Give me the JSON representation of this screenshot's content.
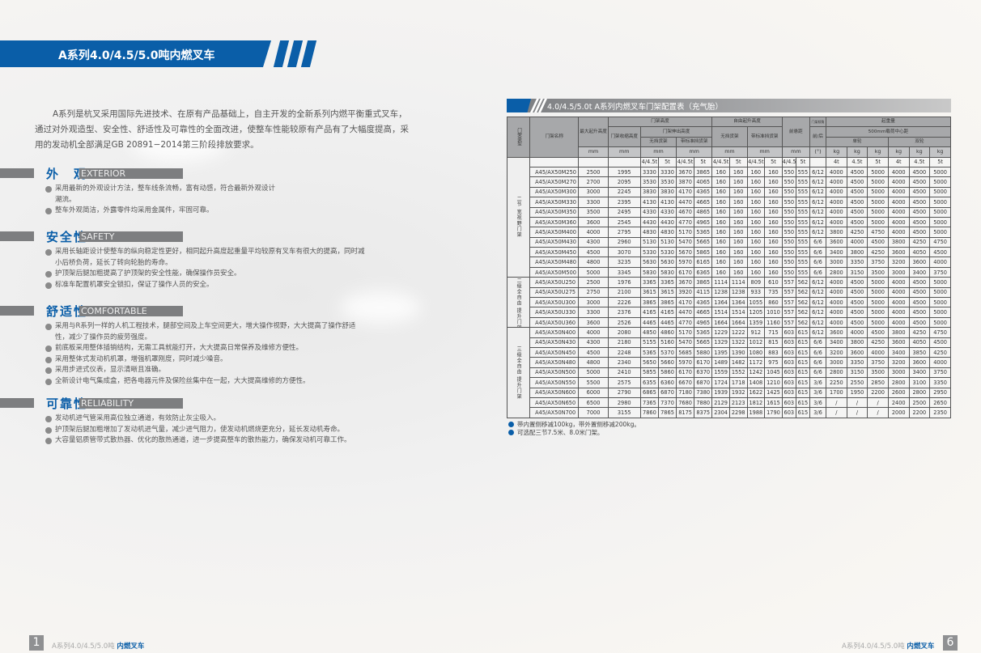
{
  "header": {
    "title": "A系列4.0/4.5/5.0吨内燃叉车"
  },
  "intro": "A系列是杭叉采用国际先进技术、在原有产品基础上，自主开发的全新系列内燃平衡重式叉车，通过对外观造型、安全性、舒适性及可靠性的全面改进，使整车性能较原有产品有了大幅度提高，采用的发动机全部满足GB 20891−2014第三阶段排放要求。",
  "sections": [
    {
      "cn": "外　观",
      "en": "EXTERIOR",
      "items": [
        "采用最新的外观设计方法，整车线条流畅，富有动感，符合最新外观设计潮流。",
        "整车外观简洁，外露零件均采用金属件，牢固可靠。"
      ]
    },
    {
      "cn": "安全性",
      "en": "SAFETY",
      "items": [
        "采用长轴距设计使整车的纵向稳定性更好，相同起升高度起重量平均较原有叉车有很大的提高，同时减小后桥负荷，延长了转向轮胎的寿命。",
        "护顶架后腿加粗提高了护顶架的安全性能，确保操作员安全。",
        "标准车配置机罩安全锁扣，保证了操作人员的安全。"
      ]
    },
    {
      "cn": "舒适性",
      "en": "COMFORTABLE",
      "items": [
        "采用与R系列一样的人机工程技术，腿部空间及上车空间更大，增大操作视野，大大提高了操作舒适性，减少了操作员的疲劳强度。",
        "前底板采用整体插销结构，无需工具就能打开，大大提高日常保养及维修方便性。",
        "采用整体式发动机机罩，增强机罩刚度，同时减少噪音。",
        "采用步进式仪表，显示清晰且准确。",
        "全新设计电气集成盒，把各电器元件及保险丝集中在一起，大大提高维修的方便性。"
      ]
    },
    {
      "cn": "可靠性",
      "en": "RELIABILITY",
      "items": [
        "发动机进气管采用高位独立通道，有效防止灰尘吸入。",
        "护顶架后腿加粗增加了发动机进气量，减少进气阻力，使发动机燃烧更充分，延长发动机寿命。",
        "大容量铝质管带式散热器、优化的散热通道，进一步提高整车的散热能力，确保发动机可靠工作。"
      ]
    }
  ],
  "table": {
    "title": "4.0/4.5/5.0t A系列内燃叉车门架配置表（充气胎）",
    "h": {
      "type": "门架类型",
      "name": "门架名称",
      "max_lift": "最大起升高度",
      "mast_height": "门架高度",
      "retracted": "门架收缩高度",
      "extended": "门架伸出高度",
      "no_guard": "无挡货架",
      "std_guard": "带标准挡货架",
      "free_lift": "自由起升高度",
      "free_no_guard": "无挡货架",
      "free_std_guard": "带标准挡货架",
      "overhang": "前悬距",
      "tilt": "门架倾角",
      "tilt_sub": "前/后",
      "capacity": "起重量",
      "load_center": "500mm载荷中心距",
      "single": "单轮",
      "dual": "双轮",
      "mm": "mm",
      "deg": "(°)",
      "kg": "kg"
    },
    "sub": [
      "",
      "",
      "",
      "4/4.5t",
      "5t",
      "4/4.5t",
      "5t",
      "4/4.5t",
      "5t",
      "4/4.5t",
      "5t",
      "4/4.5t",
      "5t",
      "",
      "4t",
      "4.5t",
      "5t",
      "4t",
      "4.5t",
      "5t"
    ],
    "groups": [
      {
        "label": "二节 宽视野门架",
        "rows": [
          [
            "A45/AX50M250",
            "2500",
            "1995",
            "3330",
            "3330",
            "3670",
            "3865",
            "160",
            "160",
            "160",
            "160",
            "550",
            "555",
            "6/12",
            "4000",
            "4500",
            "5000",
            "4000",
            "4500",
            "5000"
          ],
          [
            "A45/AX50M270",
            "2700",
            "2095",
            "3530",
            "3530",
            "3870",
            "4065",
            "160",
            "160",
            "160",
            "160",
            "550",
            "555",
            "6/12",
            "4000",
            "4500",
            "5000",
            "4000",
            "4500",
            "5000"
          ],
          [
            "A45/AX50M300",
            "3000",
            "2245",
            "3830",
            "3830",
            "4170",
            "4365",
            "160",
            "160",
            "160",
            "160",
            "550",
            "555",
            "6/12",
            "4000",
            "4500",
            "5000",
            "4000",
            "4500",
            "5000"
          ],
          [
            "A45/AX50M330",
            "3300",
            "2395",
            "4130",
            "4130",
            "4470",
            "4665",
            "160",
            "160",
            "160",
            "160",
            "550",
            "555",
            "6/12",
            "4000",
            "4500",
            "5000",
            "4000",
            "4500",
            "5000"
          ],
          [
            "A45/AX50M350",
            "3500",
            "2495",
            "4330",
            "4330",
            "4670",
            "4865",
            "160",
            "160",
            "160",
            "160",
            "550",
            "555",
            "6/12",
            "4000",
            "4500",
            "5000",
            "4000",
            "4500",
            "5000"
          ],
          [
            "A45/AX50M360",
            "3600",
            "2545",
            "4430",
            "4430",
            "4770",
            "4965",
            "160",
            "160",
            "160",
            "160",
            "550",
            "555",
            "6/12",
            "4000",
            "4500",
            "5000",
            "4000",
            "4500",
            "5000"
          ],
          [
            "A45/AX50M400",
            "4000",
            "2795",
            "4830",
            "4830",
            "5170",
            "5365",
            "160",
            "160",
            "160",
            "160",
            "550",
            "555",
            "6/12",
            "3800",
            "4250",
            "4750",
            "4000",
            "4500",
            "5000"
          ],
          [
            "A45/AX50M430",
            "4300",
            "2960",
            "5130",
            "5130",
            "5470",
            "5665",
            "160",
            "160",
            "160",
            "160",
            "550",
            "555",
            "6/6",
            "3600",
            "4000",
            "4500",
            "3800",
            "4250",
            "4750"
          ],
          [
            "A45/AX50M450",
            "4500",
            "3070",
            "5330",
            "5330",
            "5670",
            "5865",
            "160",
            "160",
            "160",
            "160",
            "550",
            "555",
            "6/6",
            "3400",
            "3800",
            "4250",
            "3600",
            "4050",
            "4500"
          ],
          [
            "A45/AX50M480",
            "4800",
            "3235",
            "5630",
            "5630",
            "5970",
            "6165",
            "160",
            "160",
            "160",
            "160",
            "550",
            "555",
            "6/6",
            "3000",
            "3350",
            "3750",
            "3200",
            "3600",
            "4000"
          ],
          [
            "A45/AX50M500",
            "5000",
            "3345",
            "5830",
            "5830",
            "6170",
            "6365",
            "160",
            "160",
            "160",
            "160",
            "550",
            "555",
            "6/6",
            "2800",
            "3150",
            "3500",
            "3000",
            "3400",
            "3750"
          ]
        ]
      },
      {
        "label": "二级全自由 提升门架",
        "rows": [
          [
            "A45/AX50U250",
            "2500",
            "1976",
            "3365",
            "3365",
            "3670",
            "3865",
            "1114",
            "1114",
            "809",
            "610",
            "557",
            "562",
            "6/12",
            "4000",
            "4500",
            "5000",
            "4000",
            "4500",
            "5000"
          ],
          [
            "A45/AX50U275",
            "2750",
            "2100",
            "3615",
            "3615",
            "3920",
            "4115",
            "1238",
            "1238",
            "933",
            "735",
            "557",
            "562",
            "6/12",
            "4000",
            "4500",
            "5000",
            "4000",
            "4500",
            "5000"
          ],
          [
            "A45/AX50U300",
            "3000",
            "2226",
            "3865",
            "3865",
            "4170",
            "4365",
            "1364",
            "1364",
            "1055",
            "860",
            "557",
            "562",
            "6/12",
            "4000",
            "4500",
            "5000",
            "4000",
            "4500",
            "5000"
          ],
          [
            "A45/AX50U330",
            "3300",
            "2376",
            "4165",
            "4165",
            "4470",
            "4665",
            "1514",
            "1514",
            "1205",
            "1010",
            "557",
            "562",
            "6/12",
            "4000",
            "4500",
            "5000",
            "4000",
            "4500",
            "5000"
          ],
          [
            "A45/AX50U360",
            "3600",
            "2526",
            "4465",
            "4465",
            "4770",
            "4965",
            "1664",
            "1664",
            "1359",
            "1160",
            "557",
            "562",
            "6/12",
            "4000",
            "4500",
            "5000",
            "4000",
            "4500",
            "5000"
          ]
        ]
      },
      {
        "label": "三级全自由 提升门架",
        "rows": [
          [
            "A45/AX50N400",
            "4000",
            "2080",
            "4850",
            "4860",
            "5170",
            "5365",
            "1229",
            "1222",
            "912",
            "715",
            "603",
            "615",
            "6/12",
            "3600",
            "4000",
            "4500",
            "3800",
            "4250",
            "4750"
          ],
          [
            "A45/AX50N430",
            "4300",
            "2180",
            "5155",
            "5160",
            "5470",
            "5665",
            "1329",
            "1322",
            "1012",
            "815",
            "603",
            "615",
            "6/6",
            "3400",
            "3800",
            "4250",
            "3600",
            "4050",
            "4500"
          ],
          [
            "A45/AX50N450",
            "4500",
            "2248",
            "5365",
            "5370",
            "5685",
            "5880",
            "1395",
            "1390",
            "1080",
            "883",
            "603",
            "615",
            "6/6",
            "3200",
            "3600",
            "4000",
            "3400",
            "3850",
            "4250"
          ],
          [
            "A45/AX50N480",
            "4800",
            "2340",
            "5650",
            "5660",
            "5970",
            "6170",
            "1489",
            "1482",
            "1172",
            "975",
            "603",
            "615",
            "6/6",
            "3000",
            "3350",
            "3750",
            "3200",
            "3600",
            "4000"
          ],
          [
            "A45/AX50N500",
            "5000",
            "2410",
            "5855",
            "5860",
            "6170",
            "6370",
            "1559",
            "1552",
            "1242",
            "1045",
            "603",
            "615",
            "6/6",
            "2800",
            "3150",
            "3500",
            "3000",
            "3400",
            "3750"
          ],
          [
            "A45/AX50N550",
            "5500",
            "2575",
            "6355",
            "6360",
            "6670",
            "6870",
            "1724",
            "1718",
            "1408",
            "1210",
            "603",
            "615",
            "3/6",
            "2250",
            "2550",
            "2850",
            "2800",
            "3100",
            "3350"
          ],
          [
            "A45/AX50N600",
            "6000",
            "2790",
            "6865",
            "6870",
            "7180",
            "7380",
            "1939",
            "1932",
            "1622",
            "1425",
            "603",
            "615",
            "3/6",
            "1700",
            "1950",
            "2200",
            "2600",
            "2800",
            "2950"
          ],
          [
            "A45/AX50N650",
            "6500",
            "2980",
            "7365",
            "7370",
            "7680",
            "7880",
            "2129",
            "2123",
            "1812",
            "1615",
            "603",
            "615",
            "3/6",
            "/",
            "/",
            "/",
            "2400",
            "2500",
            "2650"
          ],
          [
            "A45/AX50N700",
            "7000",
            "3155",
            "7860",
            "7865",
            "8175",
            "8375",
            "2304",
            "2298",
            "1988",
            "1790",
            "603",
            "615",
            "3/6",
            "/",
            "/",
            "/",
            "2000",
            "2200",
            "2350"
          ]
        ]
      }
    ],
    "notes": [
      "带内置侧移减100kg，带外置侧移减200kg。",
      "可选配三节7.5米、8.0米门架。"
    ]
  },
  "footer": {
    "left_page": "1",
    "right_page": "6",
    "series": "A系列4.0/4.5/5.0吨",
    "product": "内燃叉车"
  },
  "colors": {
    "brand_blue": "#0a5ea8",
    "gray_block": "#7d7e80"
  }
}
